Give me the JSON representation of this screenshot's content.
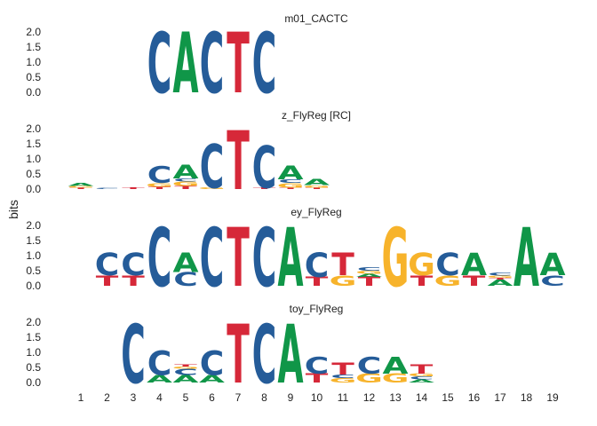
{
  "chart_data": {
    "type": "sequence-logo",
    "ylabel": "bits",
    "ylim": [
      0,
      2
    ],
    "yticks": [
      "0.0",
      "0.5",
      "1.0",
      "1.5",
      "2.0"
    ],
    "x_positions": [
      "1",
      "2",
      "3",
      "4",
      "5",
      "6",
      "7",
      "8",
      "9",
      "10",
      "11",
      "12",
      "13",
      "14",
      "15",
      "16",
      "17",
      "18",
      "19"
    ],
    "colors": {
      "A": "#109648",
      "C": "#255C99",
      "G": "#F7B32B",
      "T": "#D62839"
    },
    "panels": [
      {
        "title": "m01_CACTC",
        "columns": [
          {
            "pos": 4,
            "letters": [
              {
                "l": "C",
                "h": 2.0
              }
            ]
          },
          {
            "pos": 5,
            "letters": [
              {
                "l": "A",
                "h": 2.0
              }
            ]
          },
          {
            "pos": 6,
            "letters": [
              {
                "l": "C",
                "h": 2.0
              }
            ]
          },
          {
            "pos": 7,
            "letters": [
              {
                "l": "T",
                "h": 2.0
              }
            ]
          },
          {
            "pos": 8,
            "letters": [
              {
                "l": "C",
                "h": 2.0
              }
            ]
          }
        ]
      },
      {
        "title": "z_FlyReg [RC]",
        "columns": [
          {
            "pos": 1,
            "letters": [
              {
                "l": "T",
                "h": 0.05
              },
              {
                "l": "G",
                "h": 0.05
              },
              {
                "l": "A",
                "h": 0.1
              }
            ]
          },
          {
            "pos": 2,
            "letters": [
              {
                "l": "C",
                "h": 0.03
              }
            ]
          },
          {
            "pos": 3,
            "letters": [
              {
                "l": "T",
                "h": 0.06
              }
            ]
          },
          {
            "pos": 4,
            "letters": [
              {
                "l": "T",
                "h": 0.08
              },
              {
                "l": "G",
                "h": 0.12
              },
              {
                "l": "C",
                "h": 0.55
              }
            ]
          },
          {
            "pos": 5,
            "letters": [
              {
                "l": "T",
                "h": 0.1
              },
              {
                "l": "G",
                "h": 0.15
              },
              {
                "l": "C",
                "h": 0.1
              },
              {
                "l": "A",
                "h": 0.45
              }
            ]
          },
          {
            "pos": 6,
            "letters": [
              {
                "l": "G",
                "h": 0.05
              },
              {
                "l": "C",
                "h": 1.45
              }
            ]
          },
          {
            "pos": 7,
            "letters": [
              {
                "l": "T",
                "h": 1.95
              }
            ]
          },
          {
            "pos": 8,
            "letters": [
              {
                "l": "T",
                "h": 0.05
              },
              {
                "l": "C",
                "h": 1.4
              }
            ]
          },
          {
            "pos": 9,
            "letters": [
              {
                "l": "T",
                "h": 0.05
              },
              {
                "l": "G",
                "h": 0.15
              },
              {
                "l": "C",
                "h": 0.12
              },
              {
                "l": "A",
                "h": 0.45
              }
            ]
          },
          {
            "pos": 10,
            "letters": [
              {
                "l": "T",
                "h": 0.05
              },
              {
                "l": "G",
                "h": 0.08
              },
              {
                "l": "A",
                "h": 0.2
              }
            ]
          }
        ]
      },
      {
        "title": "ey_FlyReg",
        "columns": [
          {
            "pos": 2,
            "letters": [
              {
                "l": "T",
                "h": 0.35
              },
              {
                "l": "C",
                "h": 0.75
              }
            ]
          },
          {
            "pos": 3,
            "letters": [
              {
                "l": "T",
                "h": 0.35
              },
              {
                "l": "C",
                "h": 0.75
              }
            ]
          },
          {
            "pos": 4,
            "letters": [
              {
                "l": "C",
                "h": 1.95
              }
            ]
          },
          {
            "pos": 5,
            "letters": [
              {
                "l": "C",
                "h": 0.45
              },
              {
                "l": "A",
                "h": 0.65
              }
            ]
          },
          {
            "pos": 6,
            "letters": [
              {
                "l": "C",
                "h": 1.95
              }
            ]
          },
          {
            "pos": 7,
            "letters": [
              {
                "l": "T",
                "h": 1.95
              }
            ]
          },
          {
            "pos": 8,
            "letters": [
              {
                "l": "C",
                "h": 1.95
              }
            ]
          },
          {
            "pos": 9,
            "letters": [
              {
                "l": "A",
                "h": 1.95
              }
            ]
          },
          {
            "pos": 10,
            "letters": [
              {
                "l": "T",
                "h": 0.3
              },
              {
                "l": "C",
                "h": 0.8
              }
            ]
          },
          {
            "pos": 11,
            "letters": [
              {
                "l": "G",
                "h": 0.35
              },
              {
                "l": "T",
                "h": 0.75
              }
            ]
          },
          {
            "pos": 12,
            "letters": [
              {
                "l": "T",
                "h": 0.3
              },
              {
                "l": "A",
                "h": 0.1
              },
              {
                "l": "G",
                "h": 0.1
              },
              {
                "l": "C",
                "h": 0.12
              }
            ]
          },
          {
            "pos": 13,
            "letters": [
              {
                "l": "G",
                "h": 1.95
              }
            ]
          },
          {
            "pos": 14,
            "letters": [
              {
                "l": "T",
                "h": 0.35
              },
              {
                "l": "G",
                "h": 0.75
              }
            ]
          },
          {
            "pos": 15,
            "letters": [
              {
                "l": "G",
                "h": 0.35
              },
              {
                "l": "C",
                "h": 0.75
              }
            ]
          },
          {
            "pos": 16,
            "letters": [
              {
                "l": "T",
                "h": 0.35
              },
              {
                "l": "A",
                "h": 0.75
              }
            ]
          },
          {
            "pos": 17,
            "letters": [
              {
                "l": "A",
                "h": 0.2
              },
              {
                "l": "T",
                "h": 0.06
              },
              {
                "l": "G",
                "h": 0.08
              },
              {
                "l": "C",
                "h": 0.1
              }
            ]
          },
          {
            "pos": 18,
            "letters": [
              {
                "l": "A",
                "h": 1.95
              }
            ]
          },
          {
            "pos": 19,
            "letters": [
              {
                "l": "C",
                "h": 0.35
              },
              {
                "l": "A",
                "h": 0.75
              }
            ]
          }
        ]
      },
      {
        "title": "toy_FlyReg",
        "columns": [
          {
            "pos": 3,
            "letters": [
              {
                "l": "C",
                "h": 1.95
              }
            ]
          },
          {
            "pos": 4,
            "letters": [
              {
                "l": "A",
                "h": 0.25
              },
              {
                "l": "C",
                "h": 0.8
              }
            ]
          },
          {
            "pos": 5,
            "letters": [
              {
                "l": "A",
                "h": 0.25
              },
              {
                "l": "C",
                "h": 0.2
              },
              {
                "l": "G",
                "h": 0.08
              },
              {
                "l": "T",
                "h": 0.08
              }
            ]
          },
          {
            "pos": 6,
            "letters": [
              {
                "l": "A",
                "h": 0.25
              },
              {
                "l": "C",
                "h": 0.8
              }
            ]
          },
          {
            "pos": 7,
            "letters": [
              {
                "l": "T",
                "h": 1.95
              }
            ]
          },
          {
            "pos": 8,
            "letters": [
              {
                "l": "C",
                "h": 1.95
              }
            ]
          },
          {
            "pos": 9,
            "letters": [
              {
                "l": "A",
                "h": 1.95
              }
            ]
          },
          {
            "pos": 10,
            "letters": [
              {
                "l": "T",
                "h": 0.3
              },
              {
                "l": "C",
                "h": 0.55
              }
            ]
          },
          {
            "pos": 11,
            "letters": [
              {
                "l": "G",
                "h": 0.15
              },
              {
                "l": "C",
                "h": 0.12
              },
              {
                "l": "T",
                "h": 0.4
              }
            ]
          },
          {
            "pos": 12,
            "letters": [
              {
                "l": "G",
                "h": 0.3
              },
              {
                "l": "C",
                "h": 0.55
              }
            ]
          },
          {
            "pos": 13,
            "letters": [
              {
                "l": "G",
                "h": 0.3
              },
              {
                "l": "A",
                "h": 0.55
              }
            ]
          },
          {
            "pos": 14,
            "letters": [
              {
                "l": "A",
                "h": 0.1
              },
              {
                "l": "C",
                "h": 0.1
              },
              {
                "l": "G",
                "h": 0.1
              },
              {
                "l": "T",
                "h": 0.3
              }
            ]
          }
        ]
      }
    ]
  }
}
